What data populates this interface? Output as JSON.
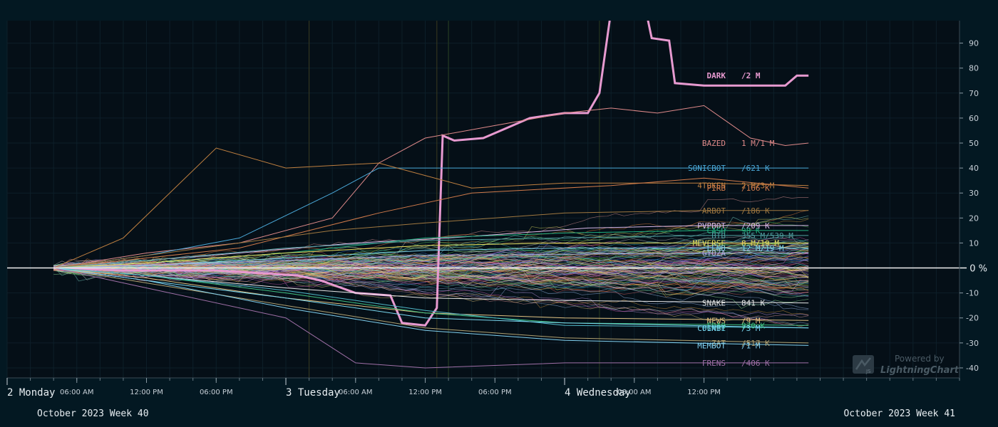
{
  "chart_data": {
    "type": "line",
    "y_unit_label": "0 %",
    "ylim": [
      -44,
      99
    ],
    "y_ticks": [
      -40,
      -30,
      -20,
      -10,
      10,
      20,
      30,
      40,
      50,
      60,
      70,
      80,
      90
    ],
    "x_range": [
      "2023-10-02T00:00",
      "2023-10-05T10:00"
    ],
    "x_ticks_major": [
      {
        "x": "2023-10-02T00:00",
        "label": "2 Monday"
      },
      {
        "x": "2023-10-03T00:00",
        "label": "3 Tuesday"
      },
      {
        "x": "2023-10-04T00:00",
        "label": "4 Wednesday"
      }
    ],
    "x_ticks_minor": [
      {
        "x": "2023-10-02T06:00",
        "label": "06:00 AM"
      },
      {
        "x": "2023-10-02T12:00",
        "label": "12:00 PM"
      },
      {
        "x": "2023-10-02T18:00",
        "label": "06:00 PM"
      },
      {
        "x": "2023-10-03T06:00",
        "label": "06:00 AM"
      },
      {
        "x": "2023-10-03T12:00",
        "label": "12:00 PM"
      },
      {
        "x": "2023-10-03T18:00",
        "label": "06:00 PM"
      },
      {
        "x": "2023-10-04T06:00",
        "label": "06:00 AM"
      },
      {
        "x": "2023-10-04T12:00",
        "label": "12:00 PM"
      }
    ],
    "week_labels": [
      "October 2023 Week 40",
      "October 2023 Week 41"
    ],
    "grid": true,
    "series": [
      {
        "name": "DARK",
        "color": "#e79ad0",
        "bold": true,
        "volume": "/2 M",
        "points": [
          [
            "2023-10-02T04:00",
            0
          ],
          [
            "2023-10-02T10:00",
            -1
          ],
          [
            "2023-10-02T18:00",
            -1
          ],
          [
            "2023-10-03T01:00",
            -3
          ],
          [
            "2023-10-03T03:00",
            -5
          ],
          [
            "2023-10-03T06:00",
            -10
          ],
          [
            "2023-10-03T09:00",
            -11
          ],
          [
            "2023-10-03T10:00",
            -22
          ],
          [
            "2023-10-03T12:00",
            -23
          ],
          [
            "2023-10-03T13:00",
            -16
          ],
          [
            "2023-10-03T13:30",
            53
          ],
          [
            "2023-10-03T14:30",
            51
          ],
          [
            "2023-10-03T17:00",
            52
          ],
          [
            "2023-10-03T19:00",
            56
          ],
          [
            "2023-10-03T21:00",
            60
          ],
          [
            "2023-10-04T00:00",
            62
          ],
          [
            "2023-10-04T02:00",
            62
          ],
          [
            "2023-10-04T03:00",
            70
          ],
          [
            "2023-10-04T04:00",
            103
          ],
          [
            "2023-10-04T07:00",
            103
          ],
          [
            "2023-10-04T07:30",
            92
          ],
          [
            "2023-10-04T09:00",
            91
          ],
          [
            "2023-10-04T09:30",
            74
          ],
          [
            "2023-10-04T12:00",
            73
          ],
          [
            "2023-10-04T15:00",
            73
          ],
          [
            "2023-10-04T19:00",
            73
          ],
          [
            "2023-10-04T20:00",
            77
          ],
          [
            "2023-10-04T21:00",
            77
          ]
        ]
      },
      {
        "name": "BAZED",
        "color": "#e08a8a",
        "volume": "1 M/1 M",
        "points": [
          [
            "2023-10-02T04:00",
            0
          ],
          [
            "2023-10-02T12:00",
            6
          ],
          [
            "2023-10-02T20:00",
            10
          ],
          [
            "2023-10-03T04:00",
            20
          ],
          [
            "2023-10-03T08:00",
            42
          ],
          [
            "2023-10-03T12:00",
            52
          ],
          [
            "2023-10-03T18:00",
            57
          ],
          [
            "2023-10-04T00:00",
            62
          ],
          [
            "2023-10-04T04:00",
            64
          ],
          [
            "2023-10-04T08:00",
            62
          ],
          [
            "2023-10-04T12:00",
            65
          ],
          [
            "2023-10-04T16:00",
            52
          ],
          [
            "2023-10-04T19:00",
            49
          ],
          [
            "2023-10-04T21:00",
            50
          ]
        ]
      },
      {
        "name": "SONICBOT",
        "color": "#4aa8d8",
        "volume": "/621 K",
        "points": [
          [
            "2023-10-02T04:00",
            0
          ],
          [
            "2023-10-02T12:00",
            5
          ],
          [
            "2023-10-02T20:00",
            12
          ],
          [
            "2023-10-03T04:00",
            30
          ],
          [
            "2023-10-03T08:00",
            40
          ],
          [
            "2023-10-03T12:00",
            40
          ],
          [
            "2023-10-04T00:00",
            40
          ],
          [
            "2023-10-04T12:00",
            40
          ],
          [
            "2023-10-04T21:00",
            40
          ]
        ]
      },
      {
        "name": "4TOKEN",
        "color": "#c08040",
        "volume": "2 M/3 M",
        "points": [
          [
            "2023-10-02T04:00",
            0
          ],
          [
            "2023-10-02T10:00",
            12
          ],
          [
            "2023-10-02T18:00",
            48
          ],
          [
            "2023-10-03T00:00",
            40
          ],
          [
            "2023-10-03T08:00",
            42
          ],
          [
            "2023-10-03T16:00",
            32
          ],
          [
            "2023-10-04T00:00",
            34
          ],
          [
            "2023-10-04T12:00",
            34
          ],
          [
            "2023-10-04T21:00",
            33
          ]
        ]
      },
      {
        "name": "PIRB",
        "color": "#d07a4a",
        "volume": "/166 K",
        "points": [
          [
            "2023-10-02T04:00",
            0
          ],
          [
            "2023-10-02T12:00",
            4
          ],
          [
            "2023-10-02T20:00",
            8
          ],
          [
            "2023-10-03T08:00",
            22
          ],
          [
            "2023-10-03T16:00",
            30
          ],
          [
            "2023-10-04T04:00",
            33
          ],
          [
            "2023-10-04T12:00",
            36
          ],
          [
            "2023-10-04T21:00",
            32
          ]
        ]
      },
      {
        "name": "ARBOT",
        "color": "#a07840",
        "volume": "/186 K",
        "points": [
          [
            "2023-10-02T04:00",
            0
          ],
          [
            "2023-10-02T12:00",
            5
          ],
          [
            "2023-10-02T20:00",
            10
          ],
          [
            "2023-10-03T04:00",
            15
          ],
          [
            "2023-10-03T12:00",
            18
          ],
          [
            "2023-10-04T00:00",
            22
          ],
          [
            "2023-10-04T12:00",
            23
          ],
          [
            "2023-10-04T21:00",
            23
          ]
        ]
      },
      {
        "name": "PVPBOT",
        "color": "#d8b8e8",
        "volume": "/209 K",
        "points": [
          [
            "2023-10-02T04:00",
            0
          ],
          [
            "2023-10-02T12:00",
            3
          ],
          [
            "2023-10-02T20:00",
            6
          ],
          [
            "2023-10-03T06:00",
            10
          ],
          [
            "2023-10-03T14:00",
            12
          ],
          [
            "2023-10-04T02:00",
            16
          ],
          [
            "2023-10-04T12:00",
            17
          ],
          [
            "2023-10-04T21:00",
            17
          ]
        ]
      },
      {
        "name": "CASH",
        "color": "#20b080",
        "volume": "98 K",
        "points": [
          [
            "2023-10-02T04:00",
            0
          ],
          [
            "2023-10-02T12:00",
            2
          ],
          [
            "2023-10-03T00:00",
            6
          ],
          [
            "2023-10-03T12:00",
            12
          ],
          [
            "2023-10-04T00:00",
            14
          ],
          [
            "2023-10-04T12:00",
            15
          ],
          [
            "2023-10-04T21:00",
            15
          ]
        ]
      },
      {
        "name": "BTB",
        "color": "#50a0a0",
        "volume": "355 M/539 M",
        "points": [
          [
            "2023-10-02T04:00",
            0
          ],
          [
            "2023-10-02T12:00",
            3
          ],
          [
            "2023-10-03T00:00",
            8
          ],
          [
            "2023-10-03T12:00",
            11
          ],
          [
            "2023-10-04T00:00",
            12
          ],
          [
            "2023-10-04T12:00",
            13
          ],
          [
            "2023-10-04T21:00",
            13
          ]
        ]
      },
      {
        "name": "MEVERSE",
        "color": "#e8e060",
        "volume": "8 M/19 M",
        "points": [
          [
            "2023-10-02T04:00",
            0
          ],
          [
            "2023-10-02T12:00",
            2
          ],
          [
            "2023-10-03T00:00",
            6
          ],
          [
            "2023-10-03T12:00",
            9
          ],
          [
            "2023-10-04T00:00",
            10
          ],
          [
            "2023-10-04T12:00",
            10
          ],
          [
            "2023-10-04T21:00",
            10
          ]
        ]
      },
      {
        "name": "LEND",
        "color": "#7ad0e8",
        "volume": "12 M/19 M",
        "points": [
          [
            "2023-10-02T04:00",
            0
          ],
          [
            "2023-10-02T12:00",
            1
          ],
          [
            "2023-10-03T00:00",
            4
          ],
          [
            "2023-10-03T12:00",
            7
          ],
          [
            "2023-10-04T00:00",
            8
          ],
          [
            "2023-10-04T21:00",
            8
          ]
        ]
      },
      {
        "name": "GYOZA",
        "color": "#b0b0e0",
        "volume": "",
        "points": [
          [
            "2023-10-02T04:00",
            0
          ],
          [
            "2023-10-02T18:00",
            2
          ],
          [
            "2023-10-03T12:00",
            5
          ],
          [
            "2023-10-04T12:00",
            6
          ],
          [
            "2023-10-04T21:00",
            6
          ]
        ]
      },
      {
        "name": "SNAKE",
        "color": "#e8e8e8",
        "volume": "841 K",
        "points": [
          [
            "2023-10-02T04:00",
            0
          ],
          [
            "2023-10-02T12:00",
            -3
          ],
          [
            "2023-10-03T00:00",
            -8
          ],
          [
            "2023-10-03T12:00",
            -12
          ],
          [
            "2023-10-04T00:00",
            -13
          ],
          [
            "2023-10-04T21:00",
            -14
          ]
        ]
      },
      {
        "name": "NEWS",
        "color": "#e0c080",
        "volume": "/9 M",
        "points": [
          [
            "2023-10-02T04:00",
            0
          ],
          [
            "2023-10-02T12:00",
            -4
          ],
          [
            "2023-10-03T00:00",
            -12
          ],
          [
            "2023-10-03T12:00",
            -18
          ],
          [
            "2023-10-04T00:00",
            -20
          ],
          [
            "2023-10-04T21:00",
            -21
          ]
        ]
      },
      {
        "name": "FDAO",
        "color": "#40c080",
        "volume": "870 K",
        "points": [
          [
            "2023-10-02T04:00",
            0
          ],
          [
            "2023-10-02T12:00",
            -3
          ],
          [
            "2023-10-03T00:00",
            -10
          ],
          [
            "2023-10-03T12:00",
            -18
          ],
          [
            "2023-10-04T00:00",
            -22
          ],
          [
            "2023-10-04T21:00",
            -23
          ]
        ]
      },
      {
        "name": "FGATE",
        "color": "#50b8c8",
        "volume": "",
        "points": [
          [
            "2023-10-02T04:00",
            0
          ],
          [
            "2023-10-02T12:00",
            -3
          ],
          [
            "2023-10-03T00:00",
            -9
          ],
          [
            "2023-10-03T12:00",
            -17
          ],
          [
            "2023-10-04T00:00",
            -23
          ],
          [
            "2023-10-04T21:00",
            -24
          ]
        ]
      },
      {
        "name": "COINBT",
        "color": "#7ad8f0",
        "volume": "/3 M",
        "points": [
          [
            "2023-10-02T04:00",
            0
          ],
          [
            "2023-10-02T12:00",
            -5
          ],
          [
            "2023-10-03T00:00",
            -12
          ],
          [
            "2023-10-03T12:00",
            -20
          ],
          [
            "2023-10-04T00:00",
            -22
          ],
          [
            "2023-10-04T21:00",
            -24
          ]
        ]
      },
      {
        "name": "ZAT",
        "color": "#b0a070",
        "volume": "/517 K",
        "points": [
          [
            "2023-10-02T04:00",
            0
          ],
          [
            "2023-10-02T12:00",
            -6
          ],
          [
            "2023-10-03T00:00",
            -15
          ],
          [
            "2023-10-03T12:00",
            -24
          ],
          [
            "2023-10-04T00:00",
            -28
          ],
          [
            "2023-10-04T21:00",
            -30
          ]
        ]
      },
      {
        "name": "MEMBOT",
        "color": "#80d0f0",
        "volume": "/1 M",
        "points": [
          [
            "2023-10-02T04:00",
            0
          ],
          [
            "2023-10-02T12:00",
            -5
          ],
          [
            "2023-10-03T00:00",
            -16
          ],
          [
            "2023-10-03T12:00",
            -25
          ],
          [
            "2023-10-04T00:00",
            -29
          ],
          [
            "2023-10-04T21:00",
            -31
          ]
        ]
      },
      {
        "name": "FRENS",
        "color": "#a070a8",
        "volume": "/406 K",
        "points": [
          [
            "2023-10-02T04:00",
            0
          ],
          [
            "2023-10-02T12:00",
            -8
          ],
          [
            "2023-10-03T00:00",
            -20
          ],
          [
            "2023-10-03T06:00",
            -38
          ],
          [
            "2023-10-03T12:00",
            -40
          ],
          [
            "2023-10-04T00:00",
            -38
          ],
          [
            "2023-10-04T21:00",
            -38
          ]
        ]
      }
    ],
    "background_series_count": 120
  },
  "watermark": {
    "powered": "Powered by",
    "brand": "LightningChart",
    "logo_letters": "JS"
  },
  "colors": {
    "background": "#031822",
    "plot_background": "#050f17",
    "grid": "#0d1f29",
    "axis_text": "#c8d0d8",
    "zero_line": "#f0f0f0",
    "palette": [
      "#e06060",
      "#e0a040",
      "#e0e060",
      "#60e060",
      "#40c0c0",
      "#4080e0",
      "#a060e0",
      "#e060c0",
      "#f0a0a0",
      "#a0f0a0",
      "#a0c0f0",
      "#f0d080",
      "#80e0d0",
      "#d0a0f0",
      "#c0c0c0",
      "#ff8c40"
    ]
  }
}
